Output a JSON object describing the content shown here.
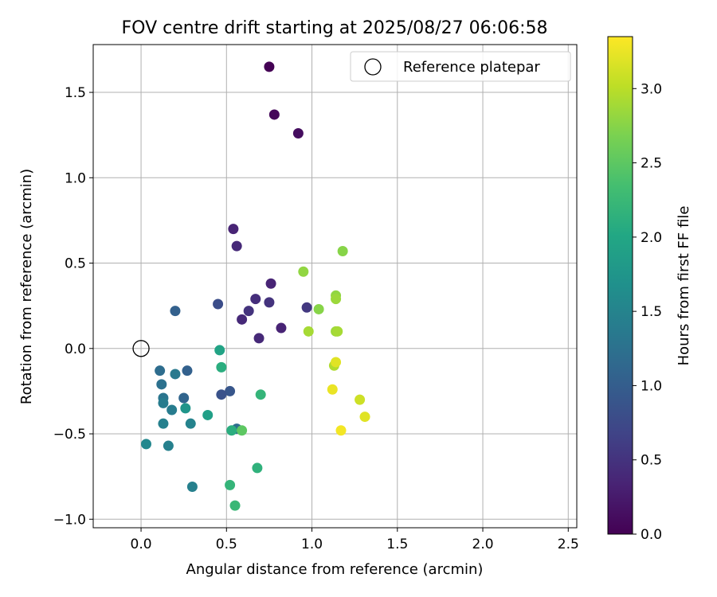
{
  "chart_data": {
    "type": "scatter",
    "title": "FOV centre drift starting at 2025/08/27 06:06:58",
    "xlabel": "Angular distance from reference (arcmin)",
    "ylabel": "Rotation from reference (arcmin)",
    "xlim": [
      -0.28,
      2.55
    ],
    "ylim": [
      -1.05,
      1.78
    ],
    "xticks": [
      0.0,
      0.5,
      1.0,
      1.5,
      2.0,
      2.5
    ],
    "xtick_labels": [
      "0.0",
      "0.5",
      "1.0",
      "1.5",
      "2.0",
      "2.5"
    ],
    "yticks": [
      -1.0,
      -0.5,
      0.0,
      0.5,
      1.0,
      1.5
    ],
    "ytick_labels": [
      "−1.0",
      "−0.5",
      "0.0",
      "0.5",
      "1.0",
      "1.5"
    ],
    "grid": true,
    "legend": {
      "placement": "top-right",
      "entries": [
        "Reference platepar"
      ]
    },
    "reference_point": {
      "x": 0.0,
      "y": 0.0,
      "name": "Reference platepar"
    },
    "colorbar": {
      "label": "Hours from first FF file",
      "colormap": "viridis",
      "range": [
        0.0,
        3.35
      ],
      "ticks": [
        0.0,
        0.5,
        1.0,
        1.5,
        2.0,
        2.5,
        3.0
      ],
      "tick_labels": [
        "0.0",
        "0.5",
        "1.0",
        "1.5",
        "2.0",
        "2.5",
        "3.0"
      ]
    },
    "points": [
      {
        "x": 0.75,
        "y": 1.65,
        "c": 0.0
      },
      {
        "x": 0.78,
        "y": 1.37,
        "c": 0.06
      },
      {
        "x": 0.92,
        "y": 1.26,
        "c": 0.12
      },
      {
        "x": 0.54,
        "y": 0.7,
        "c": 0.35
      },
      {
        "x": 0.56,
        "y": 0.6,
        "c": 0.4
      },
      {
        "x": 0.76,
        "y": 0.38,
        "c": 0.35
      },
      {
        "x": 0.67,
        "y": 0.29,
        "c": 0.45
      },
      {
        "x": 0.75,
        "y": 0.27,
        "c": 0.5
      },
      {
        "x": 0.63,
        "y": 0.22,
        "c": 0.5
      },
      {
        "x": 0.59,
        "y": 0.17,
        "c": 0.4
      },
      {
        "x": 0.82,
        "y": 0.12,
        "c": 0.35
      },
      {
        "x": 0.69,
        "y": 0.06,
        "c": 0.4
      },
      {
        "x": 0.97,
        "y": 0.24,
        "c": 0.55
      },
      {
        "x": 0.45,
        "y": 0.26,
        "c": 0.8
      },
      {
        "x": 0.2,
        "y": 0.22,
        "c": 1.05
      },
      {
        "x": 0.52,
        "y": -0.25,
        "c": 0.9
      },
      {
        "x": 0.47,
        "y": -0.27,
        "c": 0.85
      },
      {
        "x": 0.27,
        "y": -0.13,
        "c": 1.05
      },
      {
        "x": 0.25,
        "y": -0.29,
        "c": 1.1
      },
      {
        "x": 0.11,
        "y": -0.13,
        "c": 1.2
      },
      {
        "x": 0.12,
        "y": -0.21,
        "c": 1.25
      },
      {
        "x": 0.13,
        "y": -0.29,
        "c": 1.3
      },
      {
        "x": 0.2,
        "y": -0.15,
        "c": 1.35
      },
      {
        "x": 0.13,
        "y": -0.32,
        "c": 1.4
      },
      {
        "x": 0.18,
        "y": -0.36,
        "c": 1.4
      },
      {
        "x": 0.13,
        "y": -0.44,
        "c": 1.45
      },
      {
        "x": 0.29,
        "y": -0.44,
        "c": 1.5
      },
      {
        "x": 0.03,
        "y": -0.56,
        "c": 1.55
      },
      {
        "x": 0.16,
        "y": -0.57,
        "c": 1.45
      },
      {
        "x": 0.3,
        "y": -0.81,
        "c": 1.45
      },
      {
        "x": 0.56,
        "y": -0.47,
        "c": 1.2
      },
      {
        "x": 0.26,
        "y": -0.35,
        "c": 1.75
      },
      {
        "x": 0.39,
        "y": -0.39,
        "c": 1.9
      },
      {
        "x": 0.46,
        "y": -0.01,
        "c": 1.95
      },
      {
        "x": 0.47,
        "y": -0.11,
        "c": 2.1
      },
      {
        "x": 0.53,
        "y": -0.48,
        "c": 2.1
      },
      {
        "x": 0.7,
        "y": -0.27,
        "c": 2.2
      },
      {
        "x": 0.68,
        "y": -0.7,
        "c": 2.15
      },
      {
        "x": 0.52,
        "y": -0.8,
        "c": 2.2
      },
      {
        "x": 0.55,
        "y": -0.92,
        "c": 2.25
      },
      {
        "x": 0.59,
        "y": -0.48,
        "c": 2.5
      },
      {
        "x": 1.18,
        "y": 0.57,
        "c": 2.75
      },
      {
        "x": 0.95,
        "y": 0.45,
        "c": 2.8
      },
      {
        "x": 1.04,
        "y": 0.23,
        "c": 2.75
      },
      {
        "x": 1.14,
        "y": 0.31,
        "c": 2.8
      },
      {
        "x": 1.14,
        "y": 0.29,
        "c": 2.85
      },
      {
        "x": 0.98,
        "y": 0.1,
        "c": 2.9
      },
      {
        "x": 1.14,
        "y": 0.1,
        "c": 2.85
      },
      {
        "x": 1.15,
        "y": 0.1,
        "c": 2.9
      },
      {
        "x": 1.13,
        "y": -0.1,
        "c": 2.95
      },
      {
        "x": 1.14,
        "y": -0.08,
        "c": 3.2
      },
      {
        "x": 1.12,
        "y": -0.24,
        "c": 3.25
      },
      {
        "x": 1.28,
        "y": -0.3,
        "c": 3.1
      },
      {
        "x": 1.31,
        "y": -0.4,
        "c": 3.2
      },
      {
        "x": 1.17,
        "y": -0.48,
        "c": 3.3
      }
    ]
  }
}
